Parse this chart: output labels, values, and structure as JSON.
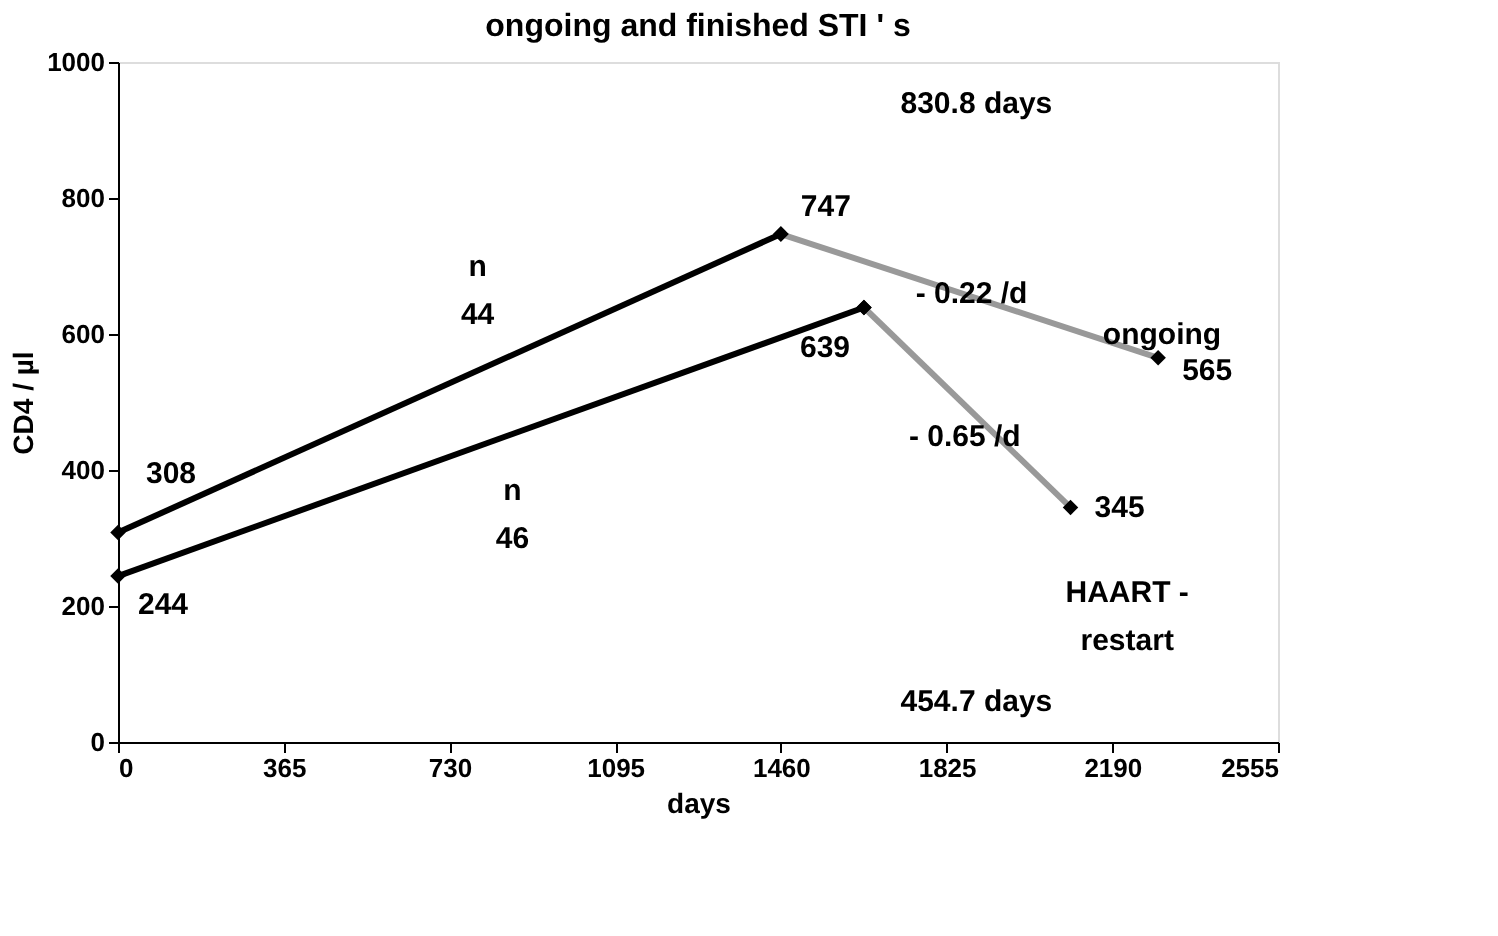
{
  "chart_data": {
    "type": "line",
    "title": "ongoing and finished STI ' s",
    "xlabel": "days",
    "ylabel": "CD4 / µl",
    "xlim": [
      0,
      2555
    ],
    "xticks": [
      0,
      365,
      730,
      1095,
      1460,
      1825,
      2190,
      2555
    ],
    "ylim": [
      0,
      1000
    ],
    "yticks": [
      0,
      200,
      400,
      600,
      800,
      1000
    ],
    "grid": false,
    "legend": false,
    "marker": "diamond",
    "line_style": "solid",
    "series": [
      {
        "color": "#000000",
        "x": [
          0,
          1460
        ],
        "values": [
          308,
          747
        ],
        "value_labels": [
          "308",
          "747"
        ]
      },
      {
        "color": "#999999",
        "x": [
          1460,
          2291
        ],
        "values": [
          747,
          565
        ],
        "value_labels": [
          null,
          "565"
        ]
      },
      {
        "color": "#000000",
        "x": [
          0,
          1643
        ],
        "values": [
          244,
          639
        ],
        "value_labels": [
          "244",
          "639"
        ]
      },
      {
        "color": "#999999",
        "x": [
          1643,
          2098
        ],
        "values": [
          639,
          345
        ],
        "value_labels": [
          null,
          "345"
        ]
      }
    ],
    "annotations": [
      "n\n44",
      "n\n46",
      {
        "text": "- 0.22 /d",
        "x": 1880,
        "y": 660
      },
      "- 0.65 /d",
      "ongoing",
      "HAART -\nrestart",
      "830.8  days",
      "454.7  days"
    ]
  }
}
